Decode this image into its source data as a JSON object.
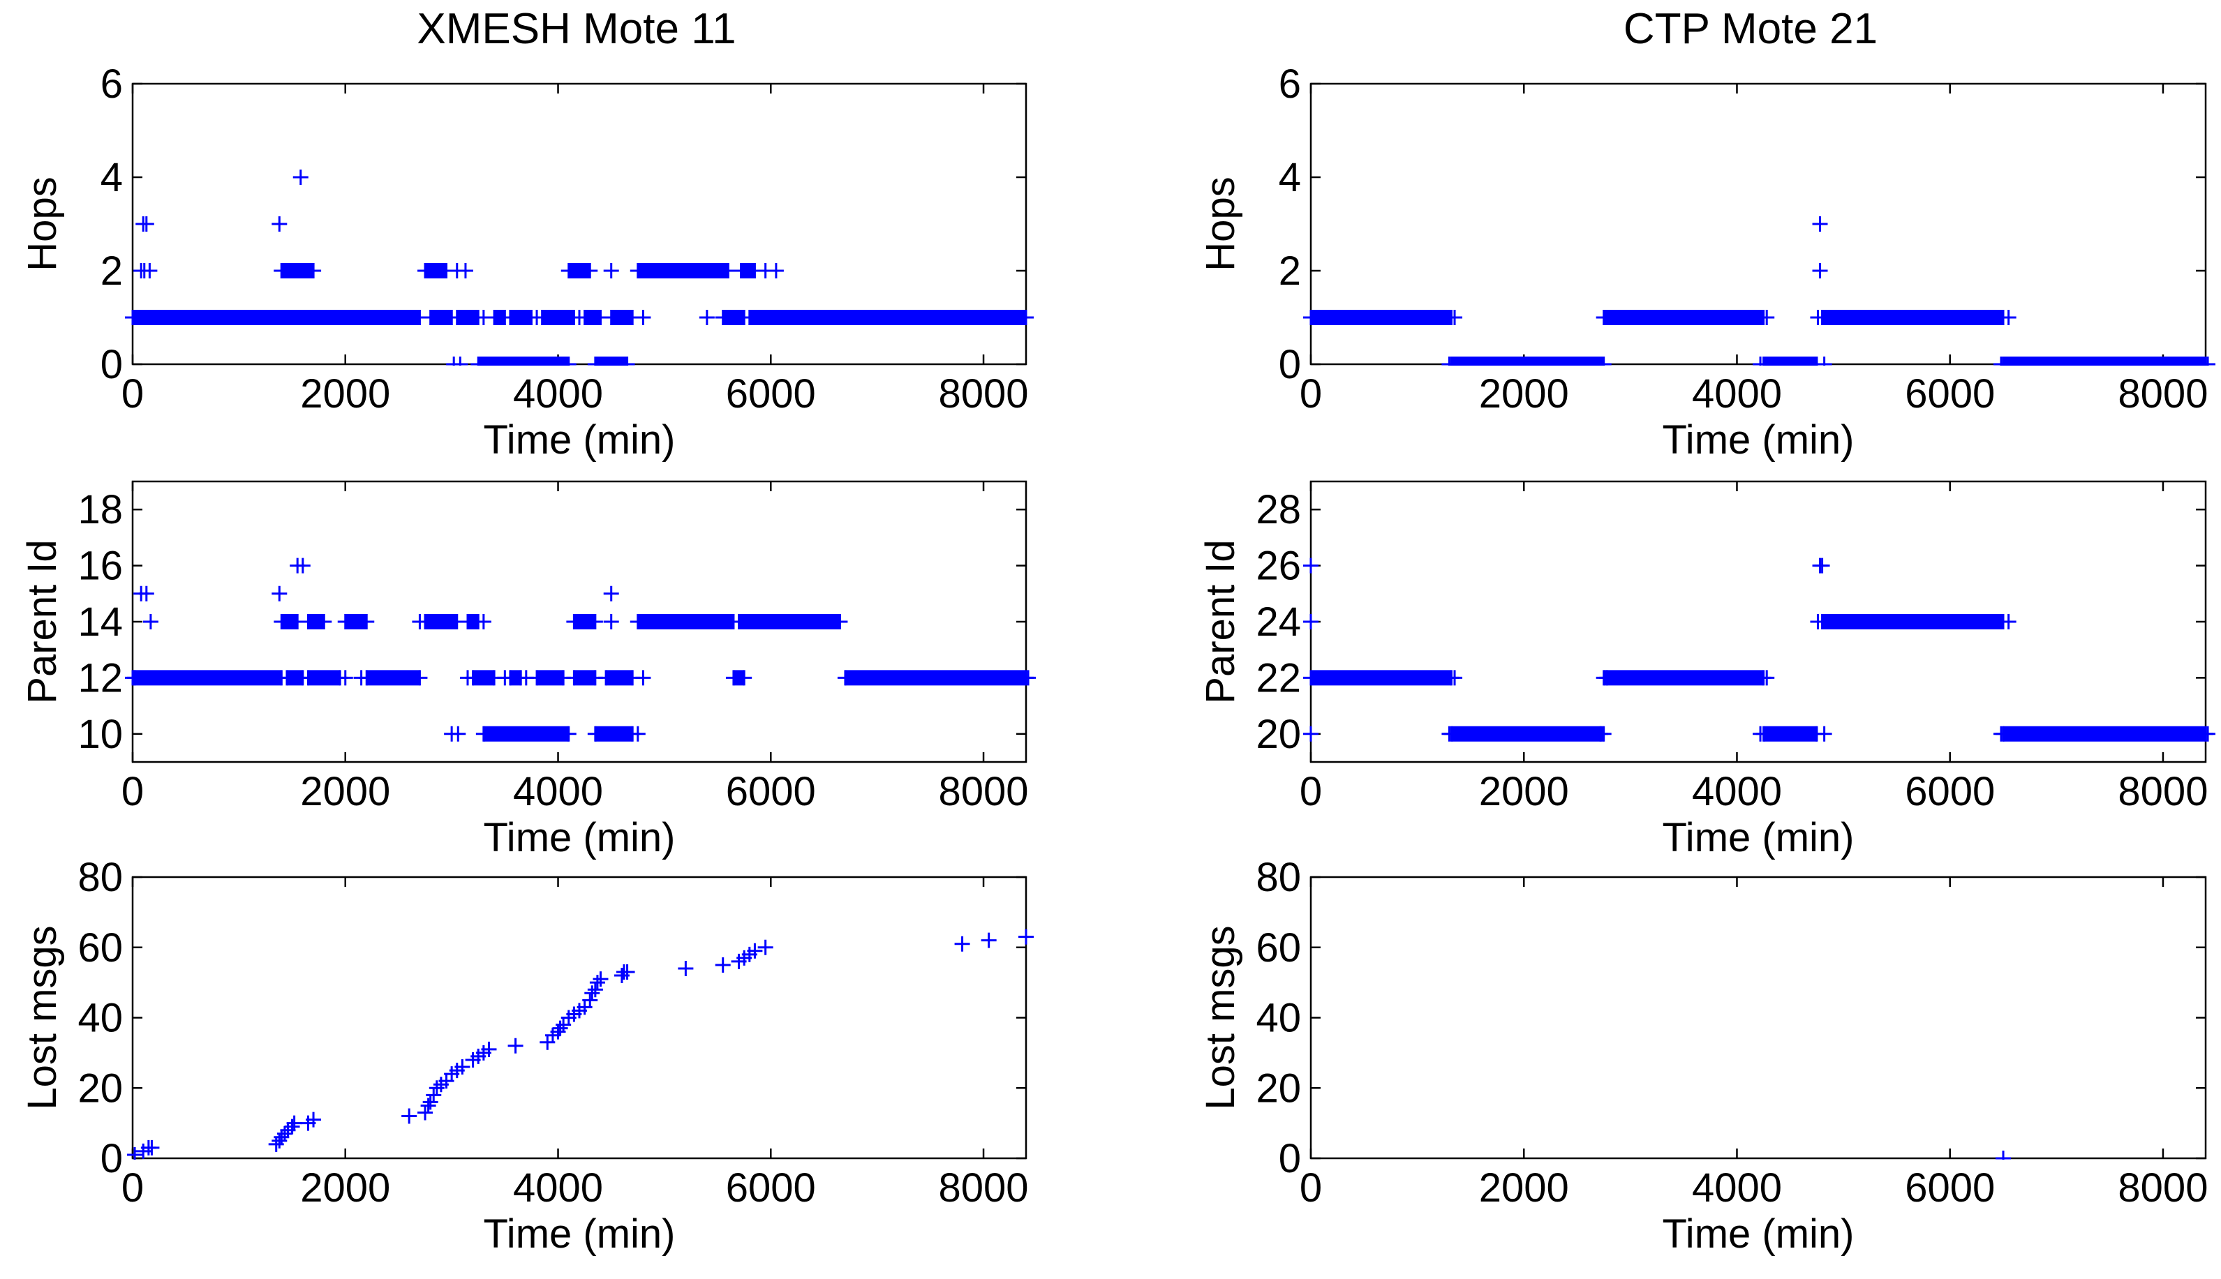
{
  "figure": {
    "columns": [
      {
        "title": "XMESH Mote 11"
      },
      {
        "title": "CTP Mote 21"
      }
    ]
  },
  "colors": {
    "series": "#0000ff",
    "axes": "#000000",
    "background": "#ffffff"
  },
  "chart_data": [
    {
      "id": "xmesh-hops",
      "type": "scatter",
      "marker": "+",
      "title": "XMESH Mote 11",
      "xlabel": "Time (min)",
      "ylabel": "Hops",
      "xlim": [
        0,
        8400
      ],
      "ylim": [
        0,
        6
      ],
      "xticks": [
        0,
        2000,
        4000,
        6000,
        8000
      ],
      "yticks": [
        0,
        2,
        4,
        6
      ],
      "series": [
        {
          "name": "hops",
          "runs": [
            {
              "y": 1,
              "x0": 0,
              "x1": 1400
            },
            {
              "y": 1,
              "x0": 1400,
              "x1": 2700
            },
            {
              "y": 1,
              "x0": 2800,
              "x1": 3000
            },
            {
              "y": 1,
              "x0": 3050,
              "x1": 3250
            },
            {
              "y": 1,
              "x0": 3400,
              "x1": 3500
            },
            {
              "y": 1,
              "x0": 3550,
              "x1": 3750
            },
            {
              "y": 1,
              "x0": 3850,
              "x1": 4150
            },
            {
              "y": 1,
              "x0": 4250,
              "x1": 4400
            },
            {
              "y": 1,
              "x0": 4500,
              "x1": 4700
            },
            {
              "y": 1,
              "x0": 5550,
              "x1": 5750
            },
            {
              "y": 1,
              "x0": 5800,
              "x1": 8400
            },
            {
              "y": 2,
              "x0": 1400,
              "x1": 1700
            },
            {
              "y": 2,
              "x0": 2750,
              "x1": 2950
            },
            {
              "y": 2,
              "x0": 4100,
              "x1": 4300
            },
            {
              "y": 2,
              "x0": 4750,
              "x1": 5600
            },
            {
              "y": 2,
              "x0": 5720,
              "x1": 5850
            },
            {
              "y": 0,
              "x0": 3250,
              "x1": 4100
            },
            {
              "y": 0,
              "x0": 4350,
              "x1": 4650
            }
          ],
          "points": [
            [
              60,
              1
            ],
            [
              100,
              3
            ],
            [
              130,
              3
            ],
            [
              160,
              2
            ],
            [
              80,
              2
            ],
            [
              110,
              2
            ],
            [
              1380,
              3
            ],
            [
              1400,
              2
            ],
            [
              1500,
              2
            ],
            [
              1550,
              2
            ],
            [
              1580,
              4
            ],
            [
              1650,
              2
            ],
            [
              1700,
              2
            ],
            [
              2650,
              1
            ],
            [
              3000,
              1
            ],
            [
              3050,
              2
            ],
            [
              3130,
              2
            ],
            [
              3080,
              0
            ],
            [
              3020,
              0
            ],
            [
              3300,
              1
            ],
            [
              3650,
              1
            ],
            [
              3700,
              1
            ],
            [
              3800,
              1
            ],
            [
              4500,
              2
            ],
            [
              4200,
              1
            ],
            [
              4800,
              1
            ],
            [
              5400,
              1
            ],
            [
              6050,
              2
            ],
            [
              5950,
              2
            ],
            [
              8400,
              1
            ]
          ]
        }
      ]
    },
    {
      "id": "ctp-hops",
      "type": "scatter",
      "marker": "+",
      "title": "CTP Mote 21",
      "xlabel": "Time (min)",
      "ylabel": "Hops",
      "xlim": [
        0,
        8400
      ],
      "ylim": [
        0,
        6
      ],
      "xticks": [
        0,
        2000,
        4000,
        6000,
        8000
      ],
      "yticks": [
        0,
        2,
        4,
        6
      ],
      "series": [
        {
          "name": "hops",
          "runs": [
            {
              "y": 1,
              "x0": 0,
              "x1": 1320
            },
            {
              "y": 0,
              "x0": 1320,
              "x1": 2750
            },
            {
              "y": 1,
              "x0": 2750,
              "x1": 4250
            },
            {
              "y": 0,
              "x0": 4250,
              "x1": 4750
            },
            {
              "y": 1,
              "x0": 4800,
              "x1": 6500
            },
            {
              "y": 0,
              "x0": 6500,
              "x1": 8400
            }
          ],
          "points": [
            [
              1350,
              1
            ],
            [
              1300,
              0
            ],
            [
              2720,
              0
            ],
            [
              2780,
              1
            ],
            [
              4280,
              1
            ],
            [
              4220,
              0
            ],
            [
              4780,
              3
            ],
            [
              4780,
              2
            ],
            [
              4820,
              0
            ],
            [
              4760,
              1
            ],
            [
              6550,
              1
            ],
            [
              6480,
              0
            ],
            [
              8420,
              0
            ]
          ]
        }
      ]
    },
    {
      "id": "xmesh-parent",
      "type": "scatter",
      "marker": "+",
      "title": "",
      "xlabel": "Time (min)",
      "ylabel": "Parent Id",
      "xlim": [
        0,
        8400
      ],
      "ylim": [
        9,
        19
      ],
      "xticks": [
        0,
        2000,
        4000,
        6000,
        8000
      ],
      "yticks": [
        10,
        12,
        14,
        16,
        18
      ],
      "series": [
        {
          "name": "parent",
          "runs": [
            {
              "y": 12,
              "x0": 0,
              "x1": 1400
            },
            {
              "y": 12,
              "x0": 1450,
              "x1": 1600
            },
            {
              "y": 12,
              "x0": 1650,
              "x1": 1950
            },
            {
              "y": 12,
              "x0": 2200,
              "x1": 2700
            },
            {
              "y": 12,
              "x0": 3200,
              "x1": 3400
            },
            {
              "y": 12,
              "x0": 3550,
              "x1": 3650
            },
            {
              "y": 12,
              "x0": 3800,
              "x1": 4050
            },
            {
              "y": 12,
              "x0": 4150,
              "x1": 4350
            },
            {
              "y": 12,
              "x0": 4450,
              "x1": 4700
            },
            {
              "y": 12,
              "x0": 5650,
              "x1": 5750
            },
            {
              "y": 12,
              "x0": 6700,
              "x1": 8400
            },
            {
              "y": 14,
              "x0": 1400,
              "x1": 1550
            },
            {
              "y": 14,
              "x0": 1650,
              "x1": 1800
            },
            {
              "y": 14,
              "x0": 2000,
              "x1": 2200
            },
            {
              "y": 14,
              "x0": 2750,
              "x1": 3050
            },
            {
              "y": 14,
              "x0": 3150,
              "x1": 3250
            },
            {
              "y": 14,
              "x0": 4150,
              "x1": 4350
            },
            {
              "y": 14,
              "x0": 4750,
              "x1": 5650
            },
            {
              "y": 14,
              "x0": 5700,
              "x1": 6650
            },
            {
              "y": 10,
              "x0": 3300,
              "x1": 4100
            },
            {
              "y": 10,
              "x0": 4350,
              "x1": 4700
            }
          ],
          "points": [
            [
              20,
              12
            ],
            [
              80,
              15
            ],
            [
              130,
              15
            ],
            [
              170,
              14
            ],
            [
              1380,
              15
            ],
            [
              1550,
              16
            ],
            [
              1600,
              16
            ],
            [
              2150,
              12
            ],
            [
              2000,
              12
            ],
            [
              2700,
              14
            ],
            [
              3300,
              14
            ],
            [
              3000,
              10
            ],
            [
              3060,
              10
            ],
            [
              3150,
              12
            ],
            [
              3500,
              12
            ],
            [
              3700,
              12
            ],
            [
              4500,
              15
            ],
            [
              4500,
              14
            ],
            [
              4800,
              12
            ],
            [
              4750,
              10
            ],
            [
              6000,
              14
            ],
            [
              6650,
              14
            ],
            [
              8420,
              12
            ]
          ]
        }
      ]
    },
    {
      "id": "ctp-parent",
      "type": "scatter",
      "marker": "+",
      "title": "",
      "xlabel": "Time (min)",
      "ylabel": "Parent Id",
      "xlim": [
        0,
        8400
      ],
      "ylim": [
        19,
        29
      ],
      "xticks": [
        0,
        2000,
        4000,
        6000,
        8000
      ],
      "yticks": [
        20,
        22,
        24,
        26,
        28
      ],
      "series": [
        {
          "name": "parent",
          "runs": [
            {
              "y": 22,
              "x0": 0,
              "x1": 1320
            },
            {
              "y": 20,
              "x0": 1320,
              "x1": 2750
            },
            {
              "y": 22,
              "x0": 2750,
              "x1": 4250
            },
            {
              "y": 20,
              "x0": 4250,
              "x1": 4750
            },
            {
              "y": 24,
              "x0": 4800,
              "x1": 6500
            },
            {
              "y": 20,
              "x0": 6500,
              "x1": 8400
            }
          ],
          "points": [
            [
              1350,
              22
            ],
            [
              1300,
              20
            ],
            [
              2720,
              20
            ],
            [
              2780,
              22
            ],
            [
              4280,
              22
            ],
            [
              4220,
              20
            ],
            [
              4780,
              26
            ],
            [
              4800,
              26
            ],
            [
              4820,
              20
            ],
            [
              4760,
              24
            ],
            [
              6550,
              24
            ],
            [
              6480,
              20
            ],
            [
              8420,
              20
            ],
            [
              0,
              26
            ],
            [
              0,
              24
            ],
            [
              0,
              20
            ]
          ]
        }
      ]
    },
    {
      "id": "xmesh-lost",
      "type": "scatter",
      "marker": "+",
      "title": "",
      "xlabel": "Time (min)",
      "ylabel": "Lost msgs",
      "xlim": [
        0,
        8400
      ],
      "ylim": [
        0,
        80
      ],
      "xticks": [
        0,
        2000,
        4000,
        6000,
        8000
      ],
      "yticks": [
        0,
        20,
        40,
        60,
        80
      ],
      "series": [
        {
          "name": "lost",
          "runs": [],
          "points": [
            [
              20,
              1
            ],
            [
              100,
              2
            ],
            [
              150,
              3
            ],
            [
              180,
              3
            ],
            [
              1350,
              4
            ],
            [
              1380,
              5
            ],
            [
              1400,
              6
            ],
            [
              1430,
              7
            ],
            [
              1460,
              8
            ],
            [
              1500,
              9
            ],
            [
              1520,
              10
            ],
            [
              1650,
              10
            ],
            [
              1700,
              11
            ],
            [
              2600,
              12
            ],
            [
              2750,
              13
            ],
            [
              2780,
              15
            ],
            [
              2800,
              16
            ],
            [
              2830,
              18
            ],
            [
              2860,
              20
            ],
            [
              2900,
              21
            ],
            [
              2950,
              22
            ],
            [
              3000,
              24
            ],
            [
              3050,
              25
            ],
            [
              3100,
              26
            ],
            [
              3200,
              28
            ],
            [
              3250,
              29
            ],
            [
              3300,
              30
            ],
            [
              3350,
              31
            ],
            [
              3600,
              32
            ],
            [
              3900,
              33
            ],
            [
              3950,
              35
            ],
            [
              4000,
              36
            ],
            [
              4020,
              37
            ],
            [
              4050,
              38
            ],
            [
              4100,
              40
            ],
            [
              4150,
              41
            ],
            [
              4200,
              42
            ],
            [
              4250,
              43
            ],
            [
              4300,
              45
            ],
            [
              4320,
              47
            ],
            [
              4350,
              48
            ],
            [
              4370,
              50
            ],
            [
              4400,
              51
            ],
            [
              4600,
              52
            ],
            [
              4620,
              53
            ],
            [
              4650,
              53
            ],
            [
              5200,
              54
            ],
            [
              5550,
              55
            ],
            [
              5700,
              56
            ],
            [
              5750,
              57
            ],
            [
              5800,
              58
            ],
            [
              5850,
              59
            ],
            [
              5950,
              60
            ],
            [
              7800,
              61
            ],
            [
              8050,
              62
            ],
            [
              8400,
              63
            ]
          ]
        }
      ]
    },
    {
      "id": "ctp-lost",
      "type": "scatter",
      "marker": "+",
      "title": "",
      "xlabel": "Time (min)",
      "ylabel": "Lost msgs",
      "xlim": [
        0,
        8400
      ],
      "ylim": [
        0,
        80
      ],
      "xticks": [
        0,
        2000,
        4000,
        6000,
        8000
      ],
      "yticks": [
        0,
        20,
        40,
        60,
        80
      ],
      "series": [
        {
          "name": "lost",
          "runs": [],
          "points": [
            [
              6500,
              0
            ]
          ]
        }
      ]
    }
  ]
}
